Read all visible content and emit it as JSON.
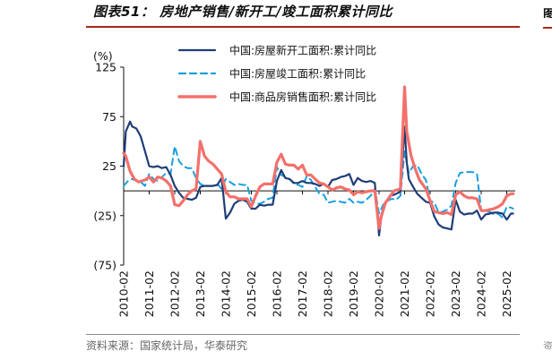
{
  "figure": {
    "title": "图表51：  房地产销售/新开工/竣工面积累计同比",
    "source": "资料来源：国家统计局，华泰研究",
    "edge_title_glyph": "图",
    "edge_source_glyph": "资"
  },
  "chart_data": {
    "type": "line",
    "title": "",
    "xlabel": "",
    "ylabel": "(%)",
    "ylim": [
      -75,
      125
    ],
    "yticks": [
      -75,
      -25,
      25,
      75,
      125
    ],
    "ytick_labels": [
      "(75)",
      "(25)",
      "25",
      "75",
      "125"
    ],
    "xlim": [
      "2010-02",
      "2025-06"
    ],
    "xticks": [
      "2010-02",
      "2011-02",
      "2012-02",
      "2013-02",
      "2014-02",
      "2015-02",
      "2016-02",
      "2017-02",
      "2018-02",
      "2019-02",
      "2020-02",
      "2021-02",
      "2022-02",
      "2023-02",
      "2024-02",
      "2025-02"
    ],
    "grid": false,
    "legend_position": "top",
    "series": [
      {
        "name": "中国:房屋新开工面积:累计同比",
        "color": "#1f3e77",
        "dash": "solid",
        "points": [
          [
            "2010-02",
            25
          ],
          [
            "2010-03",
            60
          ],
          [
            "2010-05",
            70
          ],
          [
            "2010-06",
            65
          ],
          [
            "2010-08",
            63
          ],
          [
            "2010-10",
            55
          ],
          [
            "2010-12",
            40
          ],
          [
            "2011-02",
            25
          ],
          [
            "2011-04",
            24
          ],
          [
            "2011-06",
            25
          ],
          [
            "2011-08",
            23
          ],
          [
            "2011-10",
            24
          ],
          [
            "2011-12",
            16
          ],
          [
            "2012-02",
            5
          ],
          [
            "2012-04",
            -2
          ],
          [
            "2012-06",
            -7
          ],
          [
            "2012-08",
            -8
          ],
          [
            "2012-10",
            -9
          ],
          [
            "2012-12",
            -7
          ],
          [
            "2013-02",
            4
          ],
          [
            "2013-04",
            5
          ],
          [
            "2013-06",
            5
          ],
          [
            "2013-08",
            5
          ],
          [
            "2013-10",
            6
          ],
          [
            "2013-12",
            13
          ],
          [
            "2014-02",
            -28
          ],
          [
            "2014-04",
            -22
          ],
          [
            "2014-06",
            -13
          ],
          [
            "2014-08",
            -10
          ],
          [
            "2014-10",
            -9
          ],
          [
            "2014-12",
            -11
          ],
          [
            "2015-02",
            -18
          ],
          [
            "2015-04",
            -18
          ],
          [
            "2015-06",
            -14
          ],
          [
            "2015-08",
            -15
          ],
          [
            "2015-10",
            -14
          ],
          [
            "2015-12",
            -14
          ],
          [
            "2016-02",
            10
          ],
          [
            "2016-04",
            21
          ],
          [
            "2016-06",
            13
          ],
          [
            "2016-08",
            12
          ],
          [
            "2016-10",
            8
          ],
          [
            "2016-12",
            8
          ],
          [
            "2017-02",
            10
          ],
          [
            "2017-04",
            8
          ],
          [
            "2017-06",
            8
          ],
          [
            "2017-08",
            7
          ],
          [
            "2017-10",
            5
          ],
          [
            "2017-12",
            7
          ],
          [
            "2018-02",
            4
          ],
          [
            "2018-04",
            11
          ],
          [
            "2018-06",
            12
          ],
          [
            "2018-08",
            14
          ],
          [
            "2018-10",
            15
          ],
          [
            "2018-12",
            17
          ],
          [
            "2019-02",
            6
          ],
          [
            "2019-04",
            13
          ],
          [
            "2019-06",
            10
          ],
          [
            "2019-08",
            9
          ],
          [
            "2019-10",
            10
          ],
          [
            "2019-12",
            8
          ],
          [
            "2020-02",
            -45
          ],
          [
            "2020-03",
            -27
          ],
          [
            "2020-05",
            -12
          ],
          [
            "2020-07",
            -5
          ],
          [
            "2020-09",
            -4
          ],
          [
            "2020-12",
            -1
          ],
          [
            "2021-02",
            65
          ],
          [
            "2021-03",
            29
          ],
          [
            "2021-04",
            12
          ],
          [
            "2021-06",
            4
          ],
          [
            "2021-08",
            -3
          ],
          [
            "2021-10",
            -7
          ],
          [
            "2021-12",
            -11
          ],
          [
            "2022-02",
            -12
          ],
          [
            "2022-04",
            -26
          ],
          [
            "2022-06",
            -34
          ],
          [
            "2022-08",
            -37
          ],
          [
            "2022-10",
            -38
          ],
          [
            "2022-12",
            -39
          ],
          [
            "2023-02",
            -9
          ],
          [
            "2023-04",
            -21
          ],
          [
            "2023-06",
            -24
          ],
          [
            "2023-08",
            -23
          ],
          [
            "2023-10",
            -23
          ],
          [
            "2023-12",
            -20
          ],
          [
            "2024-02",
            -29
          ],
          [
            "2024-04",
            -24
          ],
          [
            "2024-06",
            -23
          ],
          [
            "2024-08",
            -22
          ],
          [
            "2024-10",
            -22
          ],
          [
            "2024-12",
            -23
          ],
          [
            "2025-02",
            -29
          ],
          [
            "2025-04",
            -23
          ],
          [
            "2025-05",
            -23
          ]
        ]
      },
      {
        "name": "中国:房屋竣工面积:累计同比",
        "color": "#1a9ee0",
        "dash": "dashed",
        "points": [
          [
            "2010-02",
            5
          ],
          [
            "2010-04",
            10
          ],
          [
            "2010-06",
            12
          ],
          [
            "2010-08",
            10
          ],
          [
            "2010-10",
            9
          ],
          [
            "2010-12",
            5
          ],
          [
            "2011-02",
            17
          ],
          [
            "2011-04",
            12
          ],
          [
            "2011-06",
            10
          ],
          [
            "2011-08",
            14
          ],
          [
            "2011-10",
            18
          ],
          [
            "2011-12",
            17
          ],
          [
            "2012-02",
            45
          ],
          [
            "2012-04",
            30
          ],
          [
            "2012-06",
            25
          ],
          [
            "2012-08",
            23
          ],
          [
            "2012-10",
            23
          ],
          [
            "2012-12",
            13
          ],
          [
            "2013-02",
            7
          ],
          [
            "2013-04",
            5
          ],
          [
            "2013-06",
            5
          ],
          [
            "2013-08",
            5
          ],
          [
            "2013-10",
            7
          ],
          [
            "2013-12",
            2
          ],
          [
            "2014-02",
            12
          ],
          [
            "2014-04",
            9
          ],
          [
            "2014-06",
            6
          ],
          [
            "2014-08",
            7
          ],
          [
            "2014-10",
            6
          ],
          [
            "2014-12",
            6
          ],
          [
            "2015-02",
            -10
          ],
          [
            "2015-04",
            -13
          ],
          [
            "2015-06",
            -13
          ],
          [
            "2015-08",
            -11
          ],
          [
            "2015-10",
            -8
          ],
          [
            "2015-12",
            -7
          ],
          [
            "2016-02",
            24
          ],
          [
            "2016-04",
            16
          ],
          [
            "2016-06",
            14
          ],
          [
            "2016-08",
            12
          ],
          [
            "2016-10",
            7
          ],
          [
            "2016-12",
            6
          ],
          [
            "2017-02",
            4
          ],
          [
            "2017-04",
            15
          ],
          [
            "2017-06",
            11
          ],
          [
            "2017-08",
            4
          ],
          [
            "2017-10",
            -3
          ],
          [
            "2017-12",
            -4
          ],
          [
            "2018-02",
            -12
          ],
          [
            "2018-04",
            -11
          ],
          [
            "2018-06",
            -10
          ],
          [
            "2018-08",
            -11
          ],
          [
            "2018-10",
            -12
          ],
          [
            "2018-12",
            -8
          ],
          [
            "2019-02",
            -12
          ],
          [
            "2019-04",
            -11
          ],
          [
            "2019-06",
            -12
          ],
          [
            "2019-08",
            -9
          ],
          [
            "2019-10",
            -5
          ],
          [
            "2019-12",
            2
          ],
          [
            "2020-02",
            -23
          ],
          [
            "2020-04",
            -14
          ],
          [
            "2020-06",
            -10
          ],
          [
            "2020-08",
            -8
          ],
          [
            "2020-10",
            -9
          ],
          [
            "2020-12",
            -5
          ],
          [
            "2021-02",
            40
          ],
          [
            "2021-04",
            18
          ],
          [
            "2021-06",
            25
          ],
          [
            "2021-08",
            26
          ],
          [
            "2021-10",
            17
          ],
          [
            "2021-12",
            11
          ],
          [
            "2022-02",
            -10
          ],
          [
            "2022-04",
            -12
          ],
          [
            "2022-06",
            -22
          ],
          [
            "2022-08",
            -21
          ],
          [
            "2022-10",
            -19
          ],
          [
            "2022-12",
            -15
          ],
          [
            "2023-02",
            8
          ],
          [
            "2023-04",
            18
          ],
          [
            "2023-06",
            19
          ],
          [
            "2023-08",
            19
          ],
          [
            "2023-10",
            19
          ],
          [
            "2023-12",
            17
          ],
          [
            "2024-02",
            -20
          ],
          [
            "2024-04",
            -21
          ],
          [
            "2024-06",
            -21
          ],
          [
            "2024-08",
            -24
          ],
          [
            "2024-10",
            -23
          ],
          [
            "2024-12",
            -27
          ],
          [
            "2025-02",
            -16
          ],
          [
            "2025-04",
            -17
          ],
          [
            "2025-05",
            -18
          ]
        ]
      },
      {
        "name": "中国:商品房销售面积:累计同比",
        "color": "#f4706b",
        "dash": "solid",
        "points": [
          [
            "2010-02",
            38
          ],
          [
            "2010-03",
            35
          ],
          [
            "2010-05",
            20
          ],
          [
            "2010-07",
            12
          ],
          [
            "2010-09",
            9
          ],
          [
            "2010-12",
            11
          ],
          [
            "2011-02",
            14
          ],
          [
            "2011-04",
            9
          ],
          [
            "2011-06",
            14
          ],
          [
            "2011-08",
            13
          ],
          [
            "2011-10",
            10
          ],
          [
            "2011-12",
            5
          ],
          [
            "2012-02",
            -14
          ],
          [
            "2012-04",
            -15
          ],
          [
            "2012-06",
            -10
          ],
          [
            "2012-08",
            -4
          ],
          [
            "2012-10",
            0
          ],
          [
            "2012-12",
            2
          ],
          [
            "2013-02",
            50
          ],
          [
            "2013-04",
            35
          ],
          [
            "2013-06",
            30
          ],
          [
            "2013-08",
            27
          ],
          [
            "2013-10",
            22
          ],
          [
            "2013-12",
            17
          ],
          [
            "2014-02",
            -1
          ],
          [
            "2014-04",
            -6
          ],
          [
            "2014-06",
            -6
          ],
          [
            "2014-08",
            -8
          ],
          [
            "2014-10",
            -8
          ],
          [
            "2014-12",
            -8
          ],
          [
            "2015-02",
            -16
          ],
          [
            "2015-04",
            -5
          ],
          [
            "2015-06",
            4
          ],
          [
            "2015-08",
            7
          ],
          [
            "2015-10",
            7
          ],
          [
            "2015-12",
            7
          ],
          [
            "2016-02",
            29
          ],
          [
            "2016-04",
            37
          ],
          [
            "2016-06",
            27
          ],
          [
            "2016-08",
            26
          ],
          [
            "2016-10",
            26
          ],
          [
            "2016-12",
            22
          ],
          [
            "2017-02",
            26
          ],
          [
            "2017-04",
            16
          ],
          [
            "2017-06",
            16
          ],
          [
            "2017-08",
            12
          ],
          [
            "2017-10",
            8
          ],
          [
            "2017-12",
            7
          ],
          [
            "2018-02",
            4
          ],
          [
            "2018-04",
            1
          ],
          [
            "2018-06",
            3
          ],
          [
            "2018-08",
            4
          ],
          [
            "2018-10",
            2
          ],
          [
            "2018-12",
            1
          ],
          [
            "2019-02",
            -4
          ],
          [
            "2019-04",
            -1
          ],
          [
            "2019-06",
            -2
          ],
          [
            "2019-08",
            -1
          ],
          [
            "2019-10",
            0
          ],
          [
            "2019-12",
            0
          ],
          [
            "2020-02",
            -38
          ],
          [
            "2020-03",
            -26
          ],
          [
            "2020-05",
            -12
          ],
          [
            "2020-07",
            -6
          ],
          [
            "2020-09",
            0
          ],
          [
            "2020-12",
            2
          ],
          [
            "2021-02",
            105
          ],
          [
            "2021-03",
            60
          ],
          [
            "2021-05",
            36
          ],
          [
            "2021-07",
            22
          ],
          [
            "2021-09",
            11
          ],
          [
            "2021-12",
            2
          ],
          [
            "2022-02",
            -10
          ],
          [
            "2022-04",
            -21
          ],
          [
            "2022-06",
            -22
          ],
          [
            "2022-08",
            -23
          ],
          [
            "2022-10",
            -22
          ],
          [
            "2022-12",
            -24
          ],
          [
            "2023-02",
            -4
          ],
          [
            "2023-04",
            -1
          ],
          [
            "2023-06",
            -5
          ],
          [
            "2023-08",
            -7
          ],
          [
            "2023-10",
            -7
          ],
          [
            "2023-12",
            -8
          ],
          [
            "2024-02",
            -20
          ],
          [
            "2024-04",
            -20
          ],
          [
            "2024-06",
            -19
          ],
          [
            "2024-08",
            -18
          ],
          [
            "2024-10",
            -16
          ],
          [
            "2024-12",
            -13
          ],
          [
            "2025-02",
            -5
          ],
          [
            "2025-04",
            -3
          ],
          [
            "2025-05",
            -3
          ]
        ]
      }
    ]
  }
}
